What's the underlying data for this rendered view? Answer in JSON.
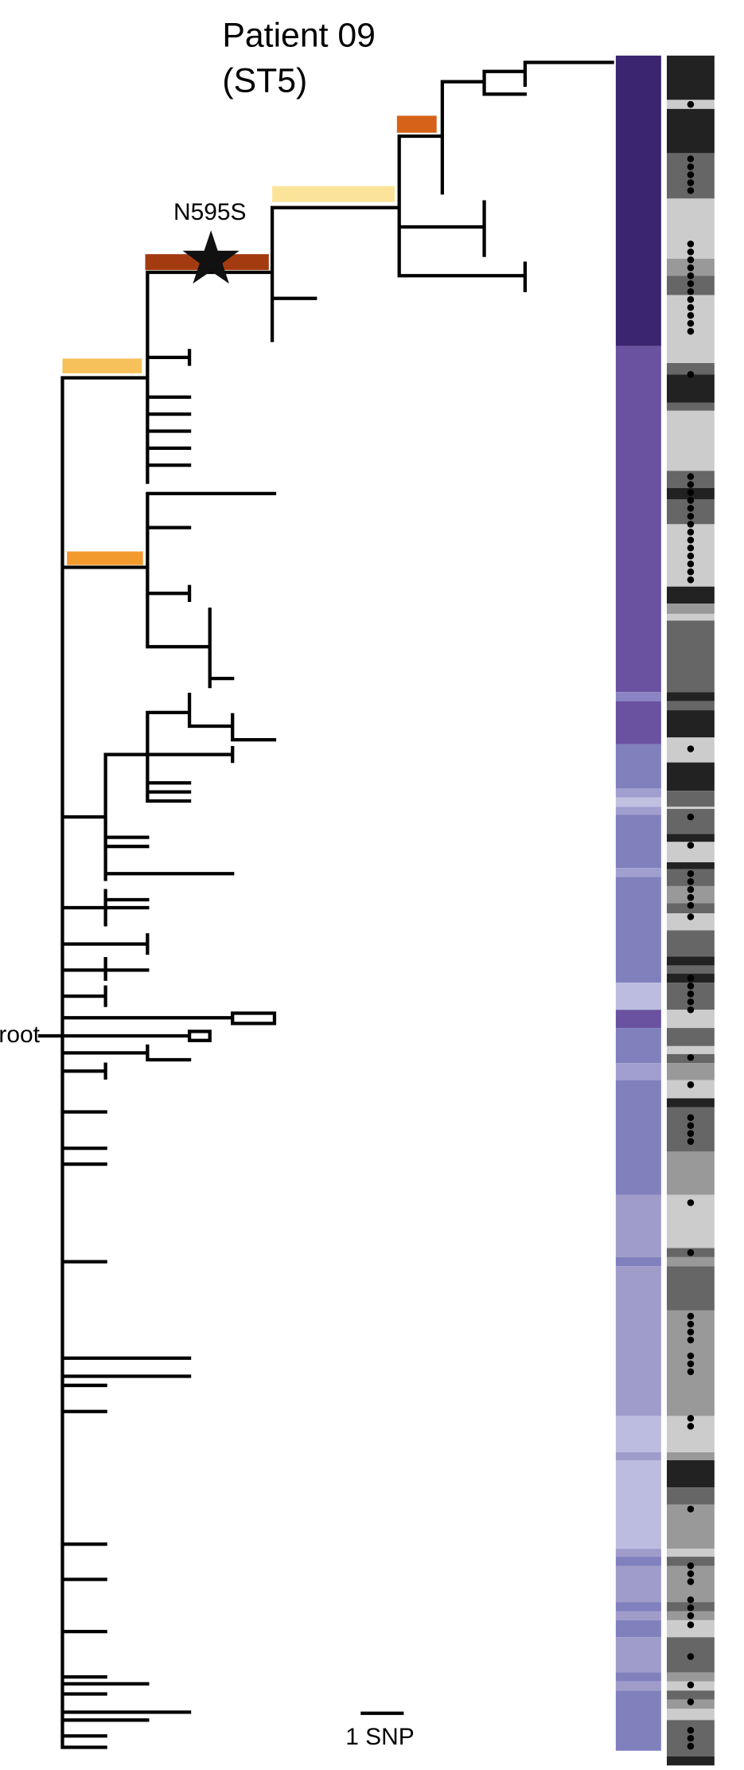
{
  "header": {
    "title": "Patient 09",
    "subtitle": "(ST5)"
  },
  "annotation": "N595S",
  "root_label": "root",
  "scale_bar": "1 SNP"
}
